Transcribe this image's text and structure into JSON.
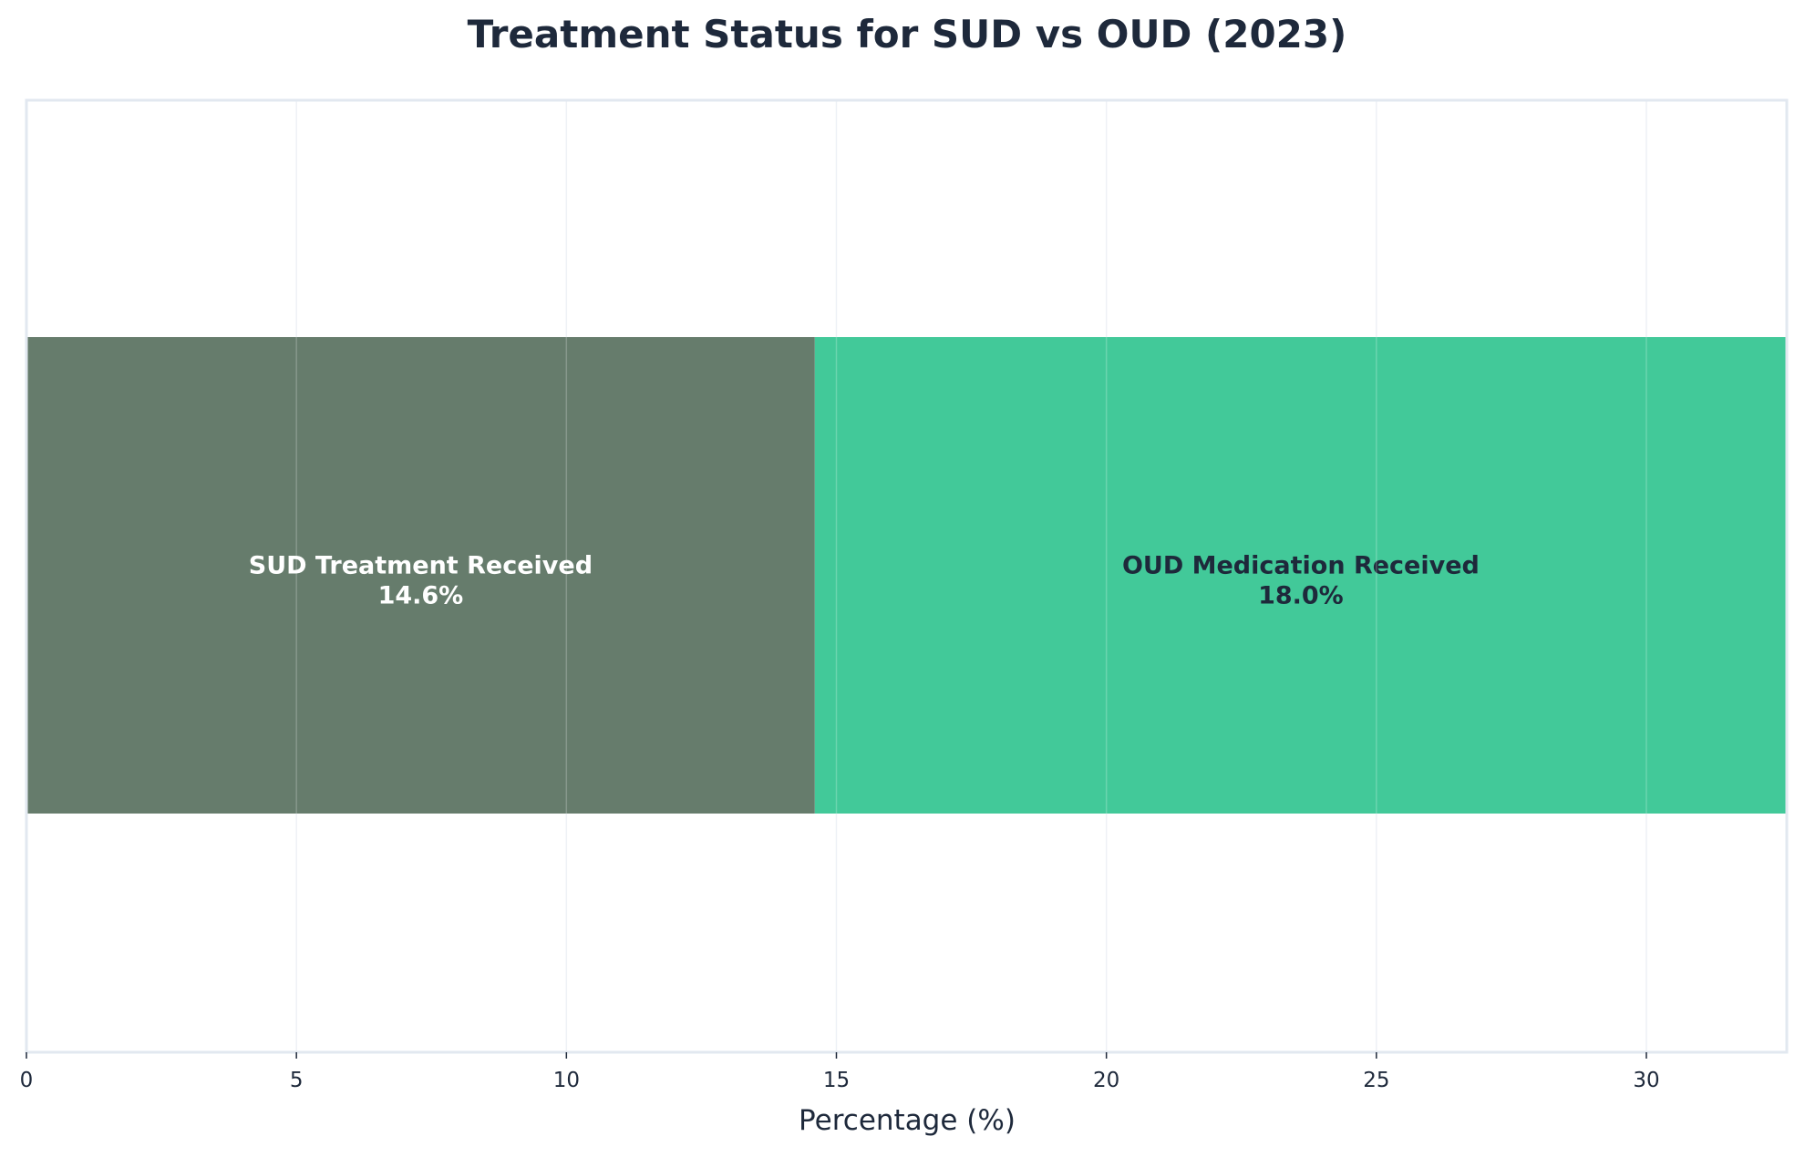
{
  "chart_data": {
    "type": "bar",
    "orientation": "horizontal",
    "stacked": true,
    "title": "Treatment Status for SUD vs OUD (2023)",
    "xlabel": "Percentage (%)",
    "ylabel": "",
    "xlim": [
      0,
      32.6
    ],
    "xticks": [
      0,
      5,
      10,
      15,
      20,
      25,
      30
    ],
    "xtick_labels": [
      "0",
      "5",
      "10",
      "15",
      "20",
      "25",
      "30"
    ],
    "grid": true,
    "series": [
      {
        "name": "SUD Treatment Received",
        "value": 14.6,
        "label": "14.6%",
        "color": "#667c6c",
        "text_color": "#ffffff"
      },
      {
        "name": "OUD Medication Received",
        "value": 18.0,
        "label": "18.0%",
        "color": "#42c999",
        "text_color": "#1e293b"
      }
    ],
    "colors": {
      "title": "#1e293b",
      "axis_text": "#1e293b",
      "frame": "#e2e8f0",
      "grid": "#eef1f6"
    }
  }
}
